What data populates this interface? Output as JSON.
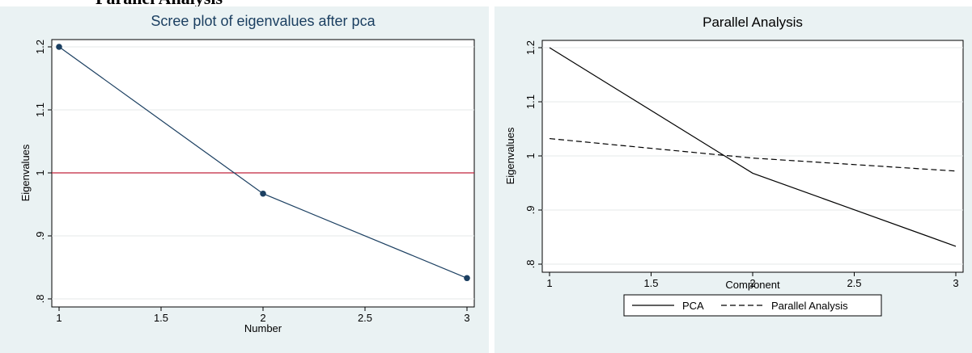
{
  "page_fragment": {
    "text": "Parallel Analysis"
  },
  "chart_data": [
    {
      "type": "line",
      "title": "Scree plot of eigenvalues after pca",
      "xlabel": "Number",
      "ylabel": "Eigenvalues",
      "xlim": [
        1,
        3
      ],
      "ylim": [
        0.8,
        1.2
      ],
      "xticks": [
        1,
        1.5,
        2,
        2.5,
        3
      ],
      "xtick_labels": [
        "1",
        "1.5",
        "2",
        "2.5",
        "3"
      ],
      "yticks": [
        0.8,
        0.9,
        1,
        1.1,
        1.2
      ],
      "ytick_labels": [
        ".8",
        ".9",
        "1",
        "1.1",
        "1.2"
      ],
      "grid": true,
      "reference_line": {
        "y": 1,
        "color": "#c0243c"
      },
      "series": [
        {
          "x": [
            1,
            2,
            3
          ],
          "values": [
            1.2,
            0.967,
            0.833
          ],
          "color": "#1b3f61",
          "markers": true
        }
      ],
      "colors": {
        "background": "#eaf2f3",
        "plot_bg": "#ffffff",
        "title": "#1b3f61",
        "line": "#1b3f61"
      }
    },
    {
      "type": "line",
      "title": "Parallel Analysis",
      "xlabel": "Component",
      "ylabel": "Eigenvalues",
      "xlim": [
        1,
        3
      ],
      "ylim": [
        0.8,
        1.2
      ],
      "xticks": [
        1,
        1.5,
        2,
        2.5,
        3
      ],
      "xtick_labels": [
        "1",
        "1.5",
        "2",
        "2.5",
        "3"
      ],
      "yticks": [
        0.8,
        0.9,
        1,
        1.1,
        1.2
      ],
      "ytick_labels": [
        ".8",
        ".9",
        "1",
        "1.1",
        "1.2"
      ],
      "grid": true,
      "legend": "bottom",
      "series": [
        {
          "name": "PCA",
          "x": [
            1,
            2,
            3
          ],
          "values": [
            1.2,
            0.968,
            0.833
          ],
          "color": "#000000",
          "dash": "solid"
        },
        {
          "name": "Parallel Analysis",
          "x": [
            1,
            2,
            3
          ],
          "values": [
            1.032,
            0.996,
            0.972
          ],
          "color": "#000000",
          "dash": "dashed"
        }
      ],
      "colors": {
        "background": "#eaf2f3",
        "plot_bg": "#ffffff",
        "title": "#000000"
      }
    }
  ]
}
